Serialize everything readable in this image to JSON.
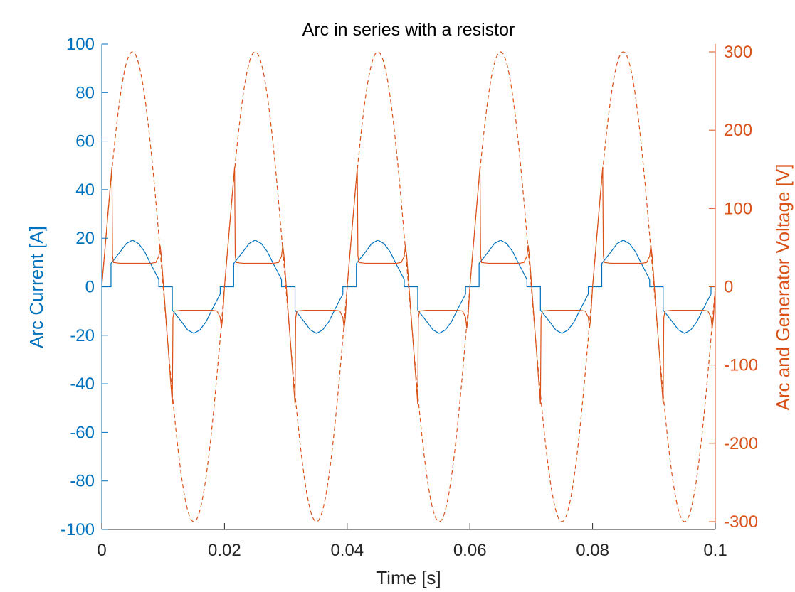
{
  "chart_data": {
    "type": "line",
    "title": "Arc in series with a resistor",
    "xlabel": "Time [s]",
    "ylabel_left": "Arc Current [A]",
    "ylabel_right": "Arc and Generator Voltage [V]",
    "xlim": [
      0,
      0.1
    ],
    "ylim_left": [
      -100,
      100
    ],
    "ylim_right": [
      -310,
      310
    ],
    "x_ticks": [
      0,
      0.02,
      0.04,
      0.06,
      0.08,
      0.1
    ],
    "x_tick_labels": [
      "0",
      "0.02",
      "0.04",
      "0.06",
      "0.08",
      "0.1"
    ],
    "y_left_ticks": [
      -100,
      -80,
      -60,
      -40,
      -20,
      0,
      20,
      40,
      60,
      80,
      100
    ],
    "y_left_tick_labels": [
      "-100",
      "-80",
      "-60",
      "-40",
      "-20",
      "0",
      "20",
      "40",
      "60",
      "80",
      "100"
    ],
    "y_right_ticks": [
      -300,
      -200,
      -100,
      0,
      100,
      200,
      300
    ],
    "y_right_tick_labels": [
      "-300",
      "-200",
      "-100",
      "0",
      "100",
      "200",
      "300"
    ],
    "grid": false,
    "colors": {
      "left_axis": "#0072BD",
      "right_axis": "#D95319",
      "axes": "#262626"
    },
    "series": [
      {
        "axis": "left",
        "style": "solid",
        "color": "#0072BD",
        "period": 0.02,
        "points": [
          [
            0,
            0
          ],
          [
            0.0015,
            0
          ],
          [
            0.0015,
            9.6
          ],
          [
            0.003,
            14.4
          ],
          [
            0.004,
            17.8
          ],
          [
            0.005,
            19.2
          ],
          [
            0.006,
            17.8
          ],
          [
            0.007,
            14.4
          ],
          [
            0.008,
            9.3
          ],
          [
            0.0093,
            3
          ],
          [
            0.0093,
            0
          ],
          [
            0.0115,
            0
          ],
          [
            0.0115,
            -9.6
          ],
          [
            0.013,
            -14.4
          ],
          [
            0.014,
            -17.8
          ],
          [
            0.015,
            -19.2
          ],
          [
            0.016,
            -17.8
          ],
          [
            0.017,
            -14.4
          ],
          [
            0.018,
            -9.3
          ],
          [
            0.0193,
            -3
          ],
          [
            0.0193,
            0
          ],
          [
            0.02,
            0
          ]
        ]
      },
      {
        "axis": "right",
        "style": "solid",
        "color": "#D95319",
        "period": 0.02,
        "points": [
          [
            0,
            0
          ],
          [
            0.00165,
            153
          ],
          [
            0.00175,
            40
          ],
          [
            0.0019,
            31
          ],
          [
            0.003,
            30
          ],
          [
            0.008,
            30
          ],
          [
            0.0088,
            31
          ],
          [
            0.0093,
            39
          ],
          [
            0.0095,
            53
          ],
          [
            0.0097,
            40
          ],
          [
            0.0115,
            -150
          ],
          [
            0.0116,
            -40
          ],
          [
            0.0118,
            -31
          ],
          [
            0.013,
            -30
          ],
          [
            0.018,
            -30
          ],
          [
            0.0188,
            -31
          ],
          [
            0.0193,
            -39
          ],
          [
            0.0195,
            -53
          ],
          [
            0.0197,
            -40
          ],
          [
            0.02,
            0
          ]
        ]
      },
      {
        "axis": "right",
        "style": "dashed",
        "color": "#D95319",
        "amplitude": 300,
        "frequency": 50
      }
    ]
  }
}
